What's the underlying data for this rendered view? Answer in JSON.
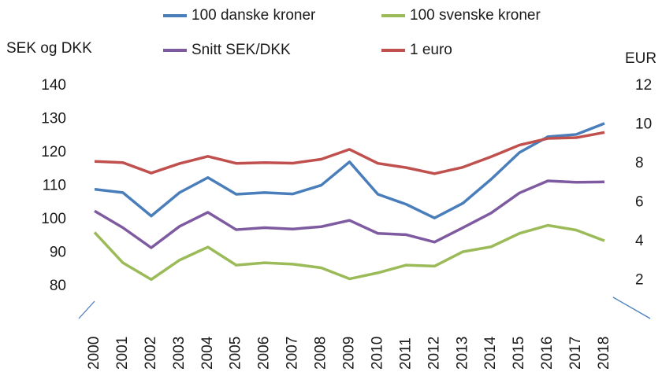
{
  "chart_data": {
    "type": "line",
    "y_label": "SEK og DKK",
    "y2_label": "EUR",
    "categories": [
      "2000",
      "2001",
      "2002",
      "2003",
      "2004",
      "2005",
      "2006",
      "2007",
      "2008",
      "2009",
      "2010",
      "2011",
      "2012",
      "2013",
      "2014",
      "2015",
      "2016",
      "2017",
      "2018"
    ],
    "series": [
      {
        "name": "100 danske kroner",
        "color": "#4a7ebb",
        "values": [
          109,
          108,
          101,
          108,
          112.5,
          107.5,
          108,
          107.6,
          110.2,
          117.2,
          107.5,
          104.5,
          100.4,
          104.8,
          112,
          120,
          124.7,
          125.4,
          128.7
        ]
      },
      {
        "name": "100 svenske kroner",
        "color": "#9bbb59",
        "values": [
          96.1,
          87,
          82,
          87.8,
          91.7,
          86.3,
          87,
          86.6,
          85.5,
          82.2,
          84,
          86.3,
          86,
          90.3,
          91.8,
          95.8,
          98.2,
          96.8,
          93.6
        ]
      },
      {
        "name": "Snitt SEK/DKK",
        "color": "#7e5ba0",
        "values": [
          102.5,
          97.5,
          91.5,
          97.9,
          102.1,
          96.9,
          97.5,
          97.1,
          97.8,
          99.7,
          95.8,
          95.4,
          93.2,
          97.5,
          101.9,
          107.9,
          111.5,
          111.1,
          111.2
        ]
      },
      {
        "name": "1 euro",
        "color": "#c0504d",
        "axis": "y2",
        "values": [
          8.11,
          8.05,
          7.51,
          8.0,
          8.37,
          8.01,
          8.05,
          8.02,
          8.22,
          8.73,
          8.01,
          7.79,
          7.48,
          7.81,
          8.35,
          8.95,
          9.29,
          9.33,
          9.6
        ]
      }
    ],
    "ylim": [
      71.5,
      146.8
    ],
    "yticks": [
      80,
      90,
      100,
      110,
      120,
      130,
      140
    ],
    "y2lim": [
      0.24,
      13.17
    ],
    "y2ticks": [
      2,
      4,
      6,
      8,
      10,
      12
    ],
    "grid": false
  }
}
